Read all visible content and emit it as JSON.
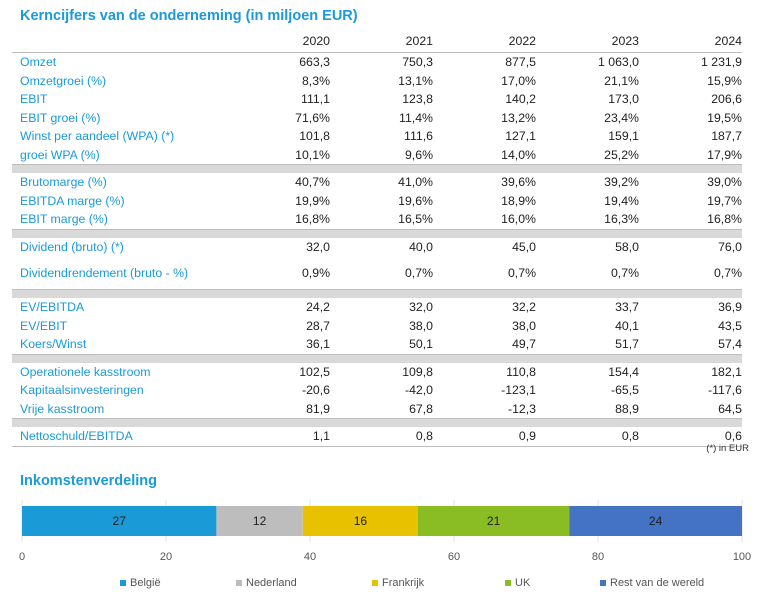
{
  "title": "Kerncijfers van de onderneming (in miljoen EUR)",
  "years": [
    "2020",
    "2021",
    "2022",
    "2023",
    "2024"
  ],
  "groups": [
    {
      "rows": [
        {
          "label": "Omzet",
          "values": [
            "663,3",
            "750,3",
            "877,5",
            "1 063,0",
            "1 231,9"
          ]
        },
        {
          "label": "Omzetgroei (%)",
          "values": [
            "8,3%",
            "13,1%",
            "17,0%",
            "21,1%",
            "15,9%"
          ]
        },
        {
          "label": "EBIT",
          "values": [
            "111,1",
            "123,8",
            "140,2",
            "173,0",
            "206,6"
          ]
        },
        {
          "label": "EBIT groei (%)",
          "values": [
            "71,6%",
            "11,4%",
            "13,2%",
            "23,4%",
            "19,5%"
          ]
        },
        {
          "label": "Winst per aandeel (WPA) (*)",
          "values": [
            "101,8",
            "111,6",
            "127,1",
            "159,1",
            "187,7"
          ]
        },
        {
          "label": "groei WPA (%)",
          "values": [
            "10,1%",
            "9,6%",
            "14,0%",
            "25,2%",
            "17,9%"
          ]
        }
      ]
    },
    {
      "rows": [
        {
          "label": "Brutomarge (%)",
          "values": [
            "40,7%",
            "41,0%",
            "39,6%",
            "39,2%",
            "39,0%"
          ]
        },
        {
          "label": "EBITDA marge (%)",
          "values": [
            "19,9%",
            "19,6%",
            "18,9%",
            "19,4%",
            "19,7%"
          ]
        },
        {
          "label": "EBIT marge (%)",
          "values": [
            "16,8%",
            "16,5%",
            "16,0%",
            "16,3%",
            "16,8%"
          ]
        }
      ]
    },
    {
      "rows": [
        {
          "label": "Dividend (bruto) (*)",
          "values": [
            "32,0",
            "40,0",
            "45,0",
            "58,0",
            "76,0"
          ]
        },
        {
          "label": "Dividendrendement (bruto - %)",
          "values": [
            "0,9%",
            "0,7%",
            "0,7%",
            "0,7%",
            "0,7%"
          ],
          "tall": true
        }
      ]
    },
    {
      "rows": [
        {
          "label": "EV/EBITDA",
          "values": [
            "24,2",
            "32,0",
            "32,2",
            "33,7",
            "36,9"
          ]
        },
        {
          "label": "EV/EBIT",
          "values": [
            "28,7",
            "38,0",
            "38,0",
            "40,1",
            "43,5"
          ]
        },
        {
          "label": "Koers/Winst",
          "values": [
            "36,1",
            "50,1",
            "49,7",
            "51,7",
            "57,4"
          ]
        }
      ]
    },
    {
      "rows": [
        {
          "label": "Operationele kasstroom",
          "values": [
            "102,5",
            "109,8",
            "110,8",
            "154,4",
            "182,1"
          ]
        },
        {
          "label": "Kapitaalsinvesteringen",
          "values": [
            "-20,6",
            "-42,0",
            "-123,1",
            "-65,5",
            "-117,6"
          ]
        },
        {
          "label": "Vrije kasstroom",
          "values": [
            "81,9",
            "67,8",
            "-12,3",
            "88,9",
            "64,5"
          ]
        }
      ]
    },
    {
      "rows": [
        {
          "label": "Nettoschuld/EBITDA",
          "values": [
            "1,1",
            "0,8",
            "0,9",
            "0,8",
            "0,6"
          ]
        }
      ]
    }
  ],
  "note": "(*) in EUR",
  "income_title": "Inkomstenverdeling",
  "chart_data": {
    "type": "bar",
    "stacked": true,
    "orientation": "horizontal",
    "series": [
      {
        "name": "België",
        "values": [
          27
        ],
        "color": "#1a9ad6"
      },
      {
        "name": "Nederland",
        "values": [
          12
        ],
        "color": "#bdbdbd"
      },
      {
        "name": "Frankrijk",
        "values": [
          16
        ],
        "color": "#e8c100"
      },
      {
        "name": "UK",
        "values": [
          21
        ],
        "color": "#8abd24"
      },
      {
        "name": "Rest van de wereld",
        "values": [
          24
        ],
        "color": "#4472c4"
      }
    ],
    "xlim": [
      0,
      100
    ],
    "xticks": [
      "0",
      "20",
      "40",
      "60",
      "80",
      "100"
    ],
    "grid": true,
    "legend": "bottom"
  }
}
